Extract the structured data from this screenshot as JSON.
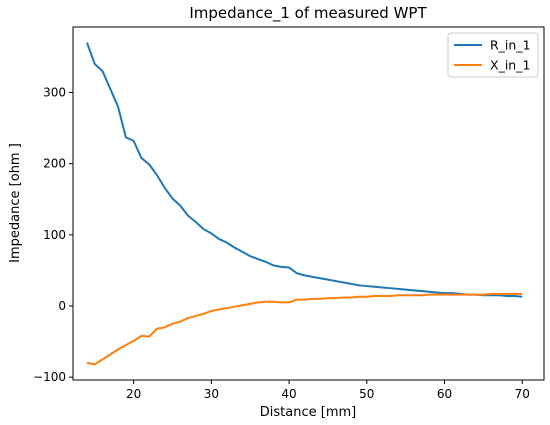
{
  "chart_data": {
    "type": "line",
    "title": "Impedance_1 of measured WPT",
    "xlabel": "Distance [mm]",
    "ylabel": "Impedance [ohm ]",
    "xlim": [
      12.2,
      72.8
    ],
    "ylim": [
      -104,
      392
    ],
    "xticks": [
      20,
      30,
      40,
      50,
      60,
      70
    ],
    "yticks": [
      -100,
      0,
      100,
      200,
      300
    ],
    "grid": false,
    "legend_position": "top-right",
    "x": [
      14,
      15,
      16,
      17,
      18,
      19,
      20,
      21,
      22,
      23,
      24,
      25,
      26,
      27,
      28,
      29,
      30,
      31,
      32,
      33,
      34,
      35,
      36,
      37,
      38,
      39,
      40,
      41,
      42,
      43,
      44,
      45,
      46,
      47,
      48,
      49,
      50,
      51,
      52,
      53,
      54,
      55,
      56,
      57,
      58,
      59,
      60,
      61,
      62,
      63,
      64,
      65,
      66,
      67,
      68,
      69,
      70
    ],
    "series": [
      {
        "name": "R_in_1",
        "color": "#1f77b4",
        "values": [
          370,
          340,
          330,
          305,
          280,
          237,
          232,
          208,
          199,
          184,
          166,
          151,
          141,
          127,
          118,
          108,
          102,
          94,
          89,
          82,
          76,
          70,
          66,
          62,
          57,
          55,
          54,
          46,
          43,
          41,
          39,
          37,
          35,
          33,
          31,
          29,
          28,
          27,
          26,
          25,
          24,
          23,
          22,
          21,
          20,
          19,
          18,
          18,
          17,
          16,
          16,
          15,
          15,
          15,
          14,
          14,
          13
        ]
      },
      {
        "name": "X_in_1",
        "color": "#ff7f0e",
        "values": [
          -80,
          -82,
          -75,
          -68,
          -61,
          -55,
          -49,
          -42,
          -43,
          -32,
          -30,
          -25,
          -22,
          -17,
          -14,
          -11,
          -7,
          -5,
          -3,
          -1,
          1,
          3,
          5,
          6,
          6,
          5,
          5,
          9,
          9,
          10,
          10,
          11,
          11,
          12,
          12,
          13,
          13,
          14,
          14,
          14,
          15,
          15,
          15,
          15,
          16,
          16,
          16,
          16,
          16,
          16,
          16,
          16,
          17,
          17,
          17,
          17,
          17
        ]
      }
    ]
  }
}
